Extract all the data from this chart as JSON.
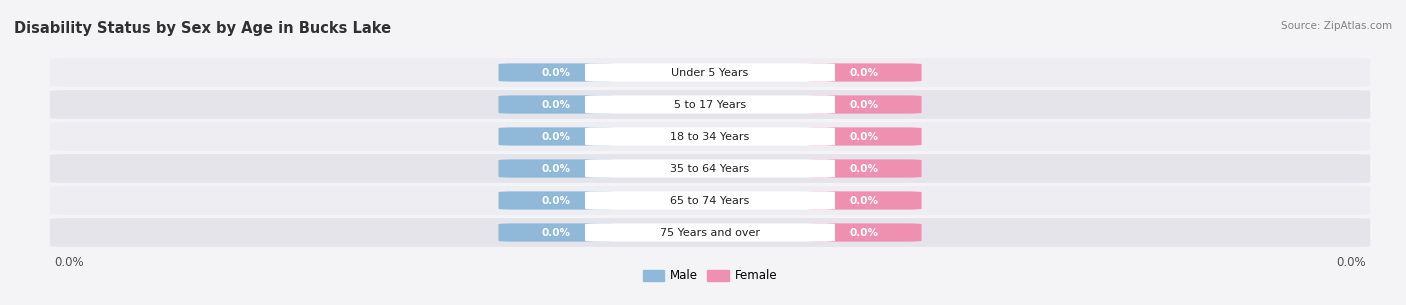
{
  "title": "Disability Status by Sex by Age in Bucks Lake",
  "source": "Source: ZipAtlas.com",
  "categories": [
    "Under 5 Years",
    "5 to 17 Years",
    "18 to 34 Years",
    "35 to 64 Years",
    "65 to 74 Years",
    "75 Years and over"
  ],
  "male_values": [
    0.0,
    0.0,
    0.0,
    0.0,
    0.0,
    0.0
  ],
  "female_values": [
    0.0,
    0.0,
    0.0,
    0.0,
    0.0,
    0.0
  ],
  "male_color": "#90b8d8",
  "female_color": "#f090b0",
  "row_color_even": "#eeeef2",
  "row_color_odd": "#e4e4ea",
  "title_color": "#303030",
  "category_color": "#202020",
  "source_color": "#808080",
  "axis_label_color": "#505050",
  "figsize": [
    14.06,
    3.05
  ],
  "dpi": 100,
  "male_label": "Male",
  "female_label": "Female"
}
